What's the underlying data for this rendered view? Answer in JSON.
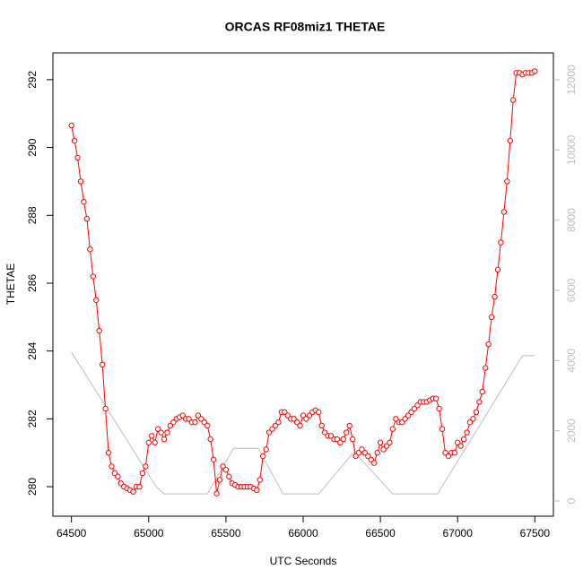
{
  "chart_data": {
    "type": "line",
    "title": "ORCAS RF08miz1 THETAE",
    "xlabel": "UTC Seconds",
    "ylabel": "THETAE",
    "xlim": [
      64380,
      67620
    ],
    "xticks": [
      64500,
      65000,
      65500,
      66000,
      66500,
      67000,
      67500
    ],
    "ylim": [
      279.13,
      292.79
    ],
    "yticks": [
      280,
      282,
      284,
      286,
      288,
      290,
      292
    ],
    "y2lim": [
      -434,
      12766
    ],
    "y2ticks": [
      0,
      2000,
      4000,
      6000,
      8000,
      10000,
      12000
    ],
    "series": [
      {
        "color": "#ff0000",
        "markers": true,
        "x": [
          64500,
          64520,
          64540,
          64560,
          64580,
          64600,
          64620,
          64640,
          64660,
          64680,
          64700,
          64720,
          64740,
          64760,
          64780,
          64800,
          64820,
          64840,
          64860,
          64880,
          64900,
          64920,
          64940,
          64960,
          64980,
          65000,
          65020,
          65040,
          65060,
          65080,
          65100,
          65120,
          65140,
          65160,
          65180,
          65200,
          65220,
          65240,
          65260,
          65280,
          65300,
          65320,
          65340,
          65360,
          65380,
          65400,
          65420,
          65440,
          65460,
          65480,
          65500,
          65520,
          65540,
          65560,
          65580,
          65600,
          65620,
          65640,
          65660,
          65680,
          65700,
          65720,
          65740,
          65760,
          65780,
          65800,
          65820,
          65840,
          65860,
          65880,
          65900,
          65920,
          65940,
          65960,
          65980,
          66000,
          66020,
          66040,
          66060,
          66080,
          66100,
          66120,
          66140,
          66160,
          66180,
          66200,
          66220,
          66240,
          66260,
          66280,
          66300,
          66320,
          66340,
          66360,
          66380,
          66400,
          66420,
          66440,
          66460,
          66480,
          66500,
          66520,
          66540,
          66560,
          66580,
          66600,
          66620,
          66640,
          66660,
          66680,
          66700,
          66720,
          66740,
          66760,
          66780,
          66800,
          66820,
          66840,
          66860,
          66880,
          66900,
          66920,
          66940,
          66960,
          66980,
          67000,
          67020,
          67040,
          67060,
          67080,
          67100,
          67120,
          67140,
          67160,
          67180,
          67200,
          67220,
          67240,
          67260,
          67280,
          67300,
          67320,
          67340,
          67360,
          67380,
          67400,
          67420,
          67440,
          67460,
          67480,
          67500
        ],
        "values": [
          290.65,
          290.2,
          289.7,
          289.0,
          288.4,
          287.9,
          287.0,
          286.2,
          285.5,
          284.6,
          283.6,
          282.3,
          281.0,
          280.6,
          280.4,
          280.3,
          280.1,
          280.0,
          279.95,
          279.9,
          279.85,
          280.0,
          280.0,
          280.4,
          280.6,
          281.3,
          281.5,
          281.3,
          281.7,
          281.6,
          281.4,
          281.6,
          281.8,
          281.9,
          282.0,
          282.05,
          282.1,
          282.0,
          282.0,
          281.9,
          281.9,
          282.1,
          282.0,
          281.9,
          281.8,
          281.4,
          280.8,
          279.8,
          280.2,
          280.6,
          280.5,
          280.3,
          280.1,
          280.05,
          280.0,
          280.0,
          280.0,
          280.0,
          280.0,
          279.95,
          279.9,
          280.2,
          280.9,
          281.1,
          281.6,
          281.7,
          281.8,
          281.9,
          282.2,
          282.2,
          282.1,
          282.0,
          282.0,
          281.9,
          281.8,
          282.1,
          282.0,
          282.1,
          282.2,
          282.25,
          282.2,
          281.8,
          281.6,
          281.5,
          281.5,
          281.4,
          281.4,
          281.3,
          281.4,
          281.6,
          281.8,
          281.4,
          280.9,
          281.0,
          281.1,
          281.0,
          280.9,
          280.8,
          280.7,
          281.0,
          281.3,
          281.1,
          281.2,
          281.3,
          281.7,
          282.0,
          281.9,
          281.9,
          282.0,
          282.1,
          282.2,
          282.3,
          282.4,
          282.5,
          282.5,
          282.5,
          282.55,
          282.6,
          282.6,
          282.3,
          281.7,
          281.0,
          280.9,
          281.0,
          281.0,
          281.3,
          281.2,
          281.4,
          281.6,
          281.9,
          282.0,
          282.2,
          282.5,
          282.8,
          283.5,
          284.2,
          285.0,
          285.6,
          286.4,
          287.2,
          288.1,
          289.0,
          290.2,
          291.4,
          292.2,
          292.2,
          292.15,
          292.2,
          292.2,
          292.2,
          292.25
        ]
      },
      {
        "color": "#bebebe",
        "axis": "y2",
        "markers": false,
        "x": [
          64500,
          65050,
          65100,
          65380,
          65550,
          65710,
          65870,
          66100,
          66330,
          66580,
          66870,
          67420,
          67500
        ],
        "values": [
          4240,
          400,
          200,
          200,
          1500,
          1500,
          200,
          200,
          1400,
          200,
          200,
          4140,
          4140
        ]
      }
    ]
  }
}
